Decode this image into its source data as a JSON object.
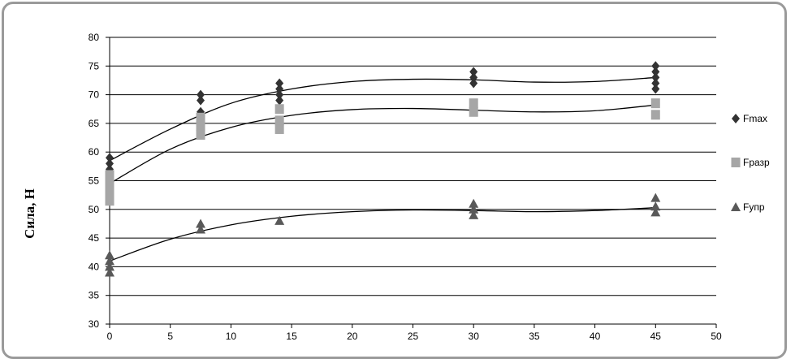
{
  "chart_data": {
    "type": "scatter",
    "title": "",
    "xlabel": "",
    "ylabel": "Сила, Н",
    "xlim": [
      0,
      50
    ],
    "ylim": [
      30,
      80
    ],
    "xticks": [
      0,
      5,
      10,
      15,
      20,
      25,
      30,
      35,
      40,
      45,
      50
    ],
    "yticks": [
      30,
      35,
      40,
      45,
      50,
      55,
      60,
      65,
      70,
      75,
      80
    ],
    "grid": "horizontal",
    "legend": "right",
    "series": [
      {
        "name": "Fmax",
        "marker": "diamond",
        "color": "#333333",
        "points": [
          [
            0,
            57
          ],
          [
            0,
            58
          ],
          [
            0,
            59
          ],
          [
            7.5,
            67
          ],
          [
            7.5,
            69
          ],
          [
            7.5,
            70
          ],
          [
            14,
            69
          ],
          [
            14,
            70
          ],
          [
            14,
            71
          ],
          [
            14,
            72
          ],
          [
            30,
            72
          ],
          [
            30,
            73
          ],
          [
            30,
            74
          ],
          [
            45,
            71
          ],
          [
            45,
            72
          ],
          [
            45,
            73
          ],
          [
            45,
            74
          ],
          [
            45,
            75
          ]
        ],
        "trend": [
          [
            0,
            58.5
          ],
          [
            5,
            64
          ],
          [
            10,
            68.5
          ],
          [
            15,
            71
          ],
          [
            20,
            72.3
          ],
          [
            25,
            72.7
          ],
          [
            30,
            72.6
          ],
          [
            35,
            72.2
          ],
          [
            40,
            72.3
          ],
          [
            45,
            73
          ]
        ]
      },
      {
        "name": "Fразр",
        "marker": "square",
        "color": "#a6a6a6",
        "points": [
          [
            0,
            51.5
          ],
          [
            0,
            53
          ],
          [
            0,
            54.5
          ],
          [
            0,
            56
          ],
          [
            7.5,
            63
          ],
          [
            7.5,
            64.5
          ],
          [
            7.5,
            66
          ],
          [
            14,
            64
          ],
          [
            14,
            65.5
          ],
          [
            14,
            67.5
          ],
          [
            30,
            67
          ],
          [
            30,
            68.5
          ],
          [
            45,
            66.5
          ],
          [
            45,
            68.5
          ]
        ],
        "trend": [
          [
            0,
            54.5
          ],
          [
            5,
            60.5
          ],
          [
            10,
            64.3
          ],
          [
            15,
            66.4
          ],
          [
            20,
            67.4
          ],
          [
            25,
            67.6
          ],
          [
            30,
            67.3
          ],
          [
            35,
            67
          ],
          [
            40,
            67.2
          ],
          [
            45,
            68.2
          ]
        ]
      },
      {
        "name": "Fупр",
        "marker": "triangle",
        "color": "#595959",
        "points": [
          [
            0,
            39
          ],
          [
            0,
            40
          ],
          [
            0,
            41
          ],
          [
            0,
            42
          ],
          [
            7.5,
            46.5
          ],
          [
            7.5,
            47.5
          ],
          [
            14,
            48
          ],
          [
            30,
            49
          ],
          [
            30,
            50
          ],
          [
            30,
            51
          ],
          [
            45,
            49.5
          ],
          [
            45,
            50.5
          ],
          [
            45,
            52
          ]
        ],
        "trend": [
          [
            0,
            41
          ],
          [
            5,
            44.8
          ],
          [
            10,
            47.3
          ],
          [
            15,
            48.8
          ],
          [
            20,
            49.6
          ],
          [
            25,
            49.9
          ],
          [
            30,
            49.8
          ],
          [
            35,
            49.6
          ],
          [
            40,
            49.8
          ],
          [
            45,
            50.3
          ]
        ]
      }
    ]
  }
}
